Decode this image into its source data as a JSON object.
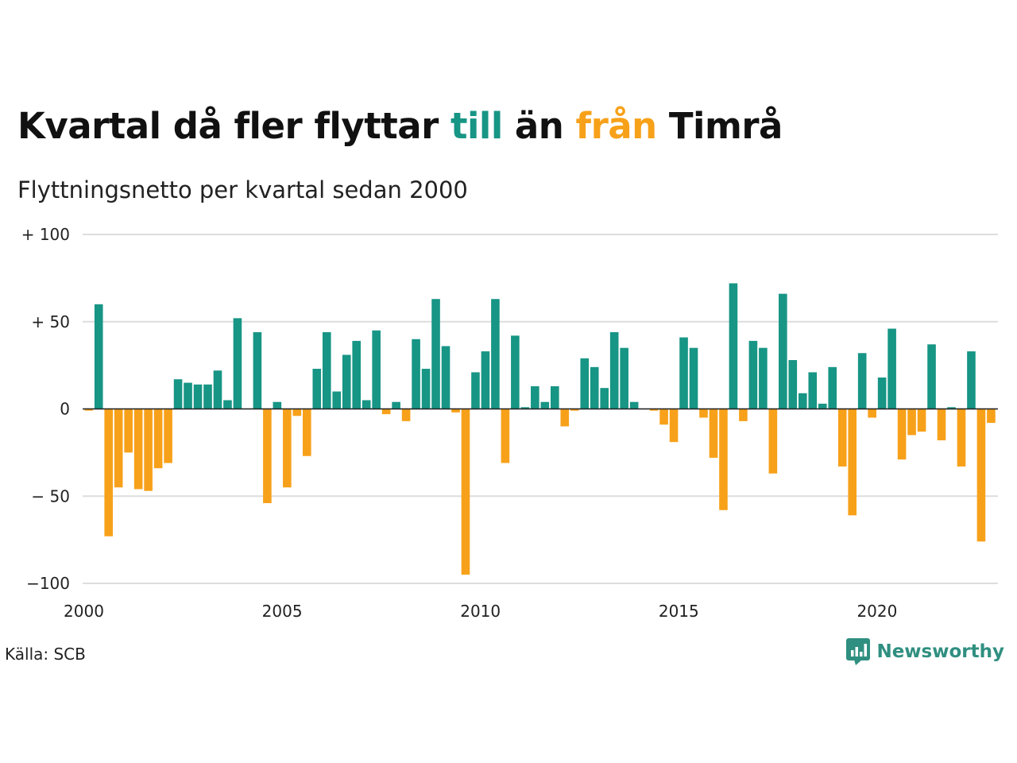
{
  "title": {
    "part1": "Kvartal då fler flyttar ",
    "till": "till",
    "part2": " än ",
    "fran": "från",
    "part3": " Timrå"
  },
  "subtitle": "Flyttningsnetto per kvartal sedan 2000",
  "source": "Källa: SCB",
  "logo": {
    "text": "Newsworthy",
    "icon": "chart-bubble-icon"
  },
  "colors": {
    "positive": "#179585",
    "negative": "#f7a11a",
    "grid": "#dddddd"
  },
  "chart_data": {
    "type": "bar",
    "xlabel": "",
    "ylabel": "",
    "ylim": [
      -100,
      100
    ],
    "yticks": [
      {
        "value": 100,
        "label": "+ 100"
      },
      {
        "value": 50,
        "label": "+  50"
      },
      {
        "value": 0,
        "label": "0"
      },
      {
        "value": -50,
        "label": "− 50"
      },
      {
        "value": -100,
        "label": "−100"
      }
    ],
    "xticks": [
      "2000",
      "2005",
      "2010",
      "2015",
      "2020"
    ],
    "start_year": 2000,
    "quarters": [
      -1,
      60,
      -73,
      -45,
      -25,
      -46,
      -47,
      -34,
      -31,
      17,
      15,
      14,
      14,
      22,
      5,
      52,
      0,
      44,
      -54,
      4,
      -45,
      -4,
      -27,
      23,
      44,
      10,
      31,
      39,
      5,
      45,
      -3,
      4,
      -7,
      40,
      23,
      63,
      36,
      -2,
      -95,
      21,
      33,
      63,
      -31,
      42,
      1,
      13,
      4,
      13,
      -10,
      -1,
      29,
      24,
      12,
      44,
      35,
      4,
      0,
      -1,
      -9,
      -19,
      41,
      35,
      -5,
      -28,
      -58,
      72,
      -7,
      39,
      35,
      -37,
      66,
      28,
      9,
      21,
      3,
      24,
      -33,
      -61,
      32,
      -5,
      18,
      46,
      -29,
      -15,
      -13,
      37,
      -18,
      1,
      -33,
      33,
      -76,
      -8
    ]
  }
}
